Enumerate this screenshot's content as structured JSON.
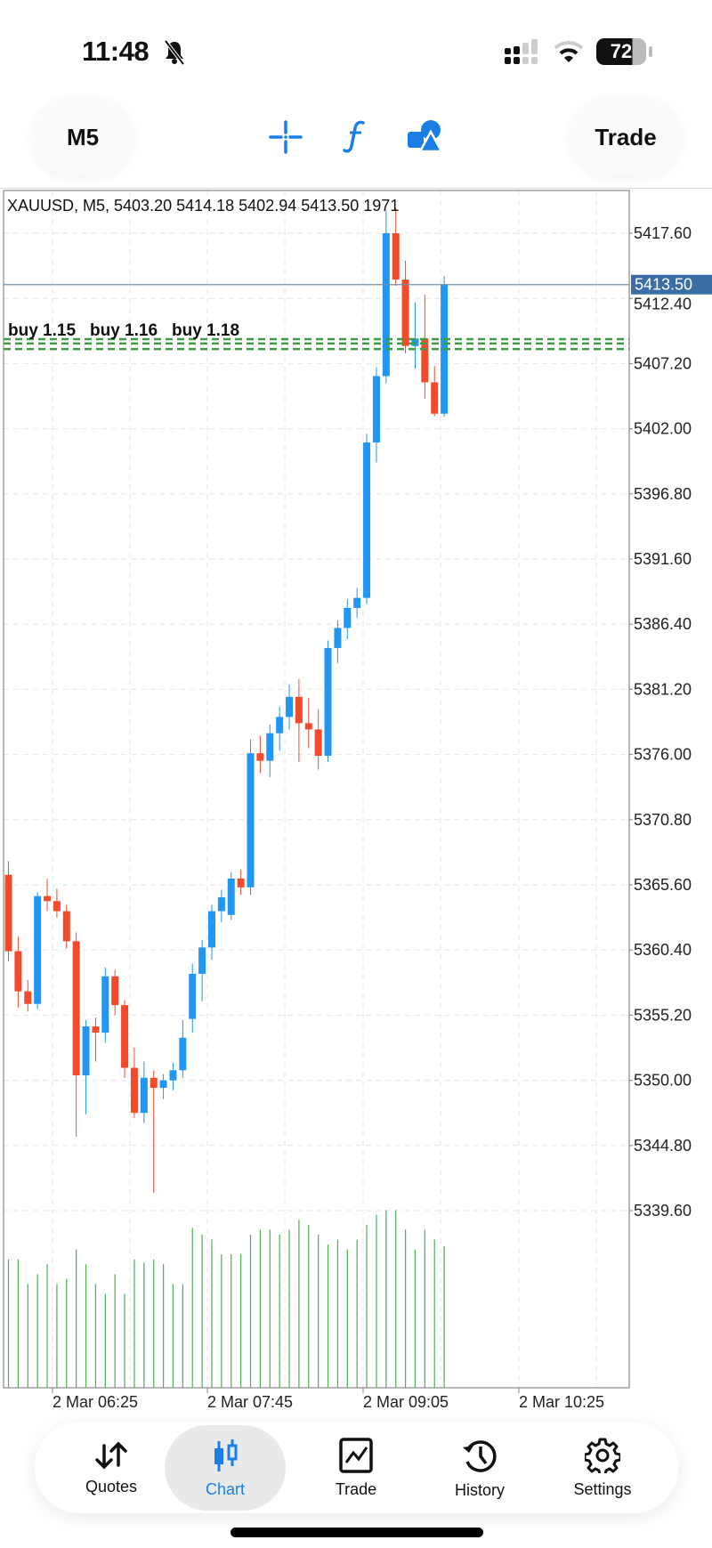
{
  "status_bar": {
    "time": "11:48",
    "battery": "72",
    "icons": [
      "bell-slash-icon",
      "signal-icon",
      "wifi-icon",
      "battery-icon"
    ]
  },
  "toolbar": {
    "timeframe": "M5",
    "trade_label": "Trade",
    "icons": [
      "crosshair-icon",
      "function-icon",
      "shapes-icon"
    ]
  },
  "colors": {
    "accent": "#1a7ee6",
    "bull": "#2196f3",
    "bear": "#f44a2c",
    "volume": "#4caf50",
    "price_tag": "#3a6ea5",
    "order_line": "#3e9a44"
  },
  "chart_data": {
    "type": "candlestick",
    "title": "XAUUSD, M5, 5403.20 5414.18 5402.94 5413.50 1971",
    "symbol": "XAUUSD",
    "timeframe": "M5",
    "ylim": [
      5335,
      5422
    ],
    "y_ticks": [
      "5417.60",
      "5412.40",
      "5407.20",
      "5402.00",
      "5396.80",
      "5391.60",
      "5386.40",
      "5381.20",
      "5376.00",
      "5370.80",
      "5365.60",
      "5360.40",
      "5355.20",
      "5350.00",
      "5344.80",
      "5339.60"
    ],
    "x_ticks": [
      "2 Mar 06:25",
      "2 Mar 07:45",
      "2 Mar 09:05",
      "2 Mar 10:25"
    ],
    "current_price": "5413.50",
    "grid": true,
    "orders": [
      {
        "label": "buy 1.15",
        "price": 5409.15
      },
      {
        "label": "buy 1.16",
        "price": 5408.8
      },
      {
        "label": "buy 1.18",
        "price": 5408.36
      }
    ],
    "ohlc": [
      [
        5366.4,
        5367.5,
        5359.5,
        5360.3
      ],
      [
        5360.3,
        5361.5,
        5355.8,
        5357.1
      ],
      [
        5357.1,
        5358.0,
        5355.5,
        5356.1
      ],
      [
        5356.1,
        5365.0,
        5355.7,
        5364.7
      ],
      [
        5364.7,
        5366.1,
        5363.5,
        5364.3
      ],
      [
        5364.3,
        5365.3,
        5363.0,
        5363.5
      ],
      [
        5363.5,
        5364.0,
        5360.5,
        5361.1
      ],
      [
        5361.1,
        5361.8,
        5345.5,
        5350.4
      ],
      [
        5350.4,
        5354.8,
        5347.3,
        5354.3
      ],
      [
        5354.3,
        5355.0,
        5351.5,
        5353.8
      ],
      [
        5353.8,
        5359.0,
        5353.0,
        5358.3
      ],
      [
        5358.3,
        5358.8,
        5355.2,
        5356.0
      ],
      [
        5356.0,
        5356.4,
        5350.2,
        5351.0
      ],
      [
        5351.0,
        5352.6,
        5347.0,
        5347.4
      ],
      [
        5347.4,
        5351.5,
        5346.6,
        5350.2
      ],
      [
        5350.2,
        5350.8,
        5341.0,
        5349.4
      ],
      [
        5349.4,
        5350.5,
        5348.5,
        5350.0
      ],
      [
        5350.0,
        5351.4,
        5349.2,
        5350.8
      ],
      [
        5350.8,
        5354.8,
        5350.2,
        5353.4
      ],
      [
        5354.9,
        5359.3,
        5353.8,
        5358.5
      ],
      [
        5358.5,
        5361.2,
        5356.3,
        5360.6
      ],
      [
        5360.6,
        5364.0,
        5359.6,
        5363.5
      ],
      [
        5363.5,
        5365.2,
        5362.6,
        5364.6
      ],
      [
        5363.2,
        5366.6,
        5362.8,
        5366.1
      ],
      [
        5366.1,
        5366.8,
        5364.8,
        5365.4
      ],
      [
        5365.4,
        5377.2,
        5364.8,
        5376.1
      ],
      [
        5376.1,
        5377.5,
        5374.5,
        5375.5
      ],
      [
        5375.5,
        5378.4,
        5374.2,
        5377.7
      ],
      [
        5377.7,
        5379.8,
        5376.3,
        5379.0
      ],
      [
        5379.0,
        5381.6,
        5378.0,
        5380.6
      ],
      [
        5380.6,
        5382.0,
        5375.4,
        5378.5
      ],
      [
        5378.5,
        5380.5,
        5376.5,
        5378.0
      ],
      [
        5378.0,
        5379.6,
        5374.8,
        5375.9
      ],
      [
        5375.9,
        5385.1,
        5375.4,
        5384.5
      ],
      [
        5384.5,
        5386.7,
        5383.3,
        5386.1
      ],
      [
        5386.1,
        5388.4,
        5385.2,
        5387.7
      ],
      [
        5387.7,
        5389.3,
        5386.9,
        5388.5
      ],
      [
        5388.5,
        5401.6,
        5388.0,
        5400.9
      ],
      [
        5400.9,
        5406.9,
        5399.3,
        5406.2
      ],
      [
        5406.2,
        5419.4,
        5405.6,
        5417.6
      ],
      [
        5417.6,
        5419.6,
        5413.4,
        5413.9
      ],
      [
        5413.9,
        5415.4,
        5408.0,
        5408.6
      ],
      [
        5408.6,
        5412.1,
        5406.8,
        5409.2
      ],
      [
        5409.2,
        5412.7,
        5404.4,
        5405.7
      ],
      [
        5405.7,
        5407.0,
        5403.0,
        5403.2
      ],
      [
        5403.2,
        5414.18,
        5402.94,
        5413.5
      ]
    ],
    "volume": [
      1789,
      1789,
      1445,
      1582,
      1720,
      1445,
      1514,
      1926,
      1720,
      1445,
      1307,
      1582,
      1307,
      1789,
      1747,
      1789,
      1720,
      1445,
      1445,
      2229,
      2133,
      2064,
      1858,
      1858,
      1858,
      2133,
      2202,
      2202,
      2133,
      2202,
      2339,
      2270,
      2133,
      1995,
      2064,
      1926,
      2064,
      2270,
      2408,
      2477,
      2477,
      2202,
      1926,
      2202,
      2064,
      1971
    ]
  },
  "bottom_nav": {
    "items": [
      {
        "label": "Quotes",
        "icon": "quotes-arrows-icon"
      },
      {
        "label": "Chart",
        "icon": "candlestick-icon",
        "active": true
      },
      {
        "label": "Trade",
        "icon": "trade-chart-icon"
      },
      {
        "label": "History",
        "icon": "history-icon"
      },
      {
        "label": "Settings",
        "icon": "gear-icon"
      }
    ]
  }
}
